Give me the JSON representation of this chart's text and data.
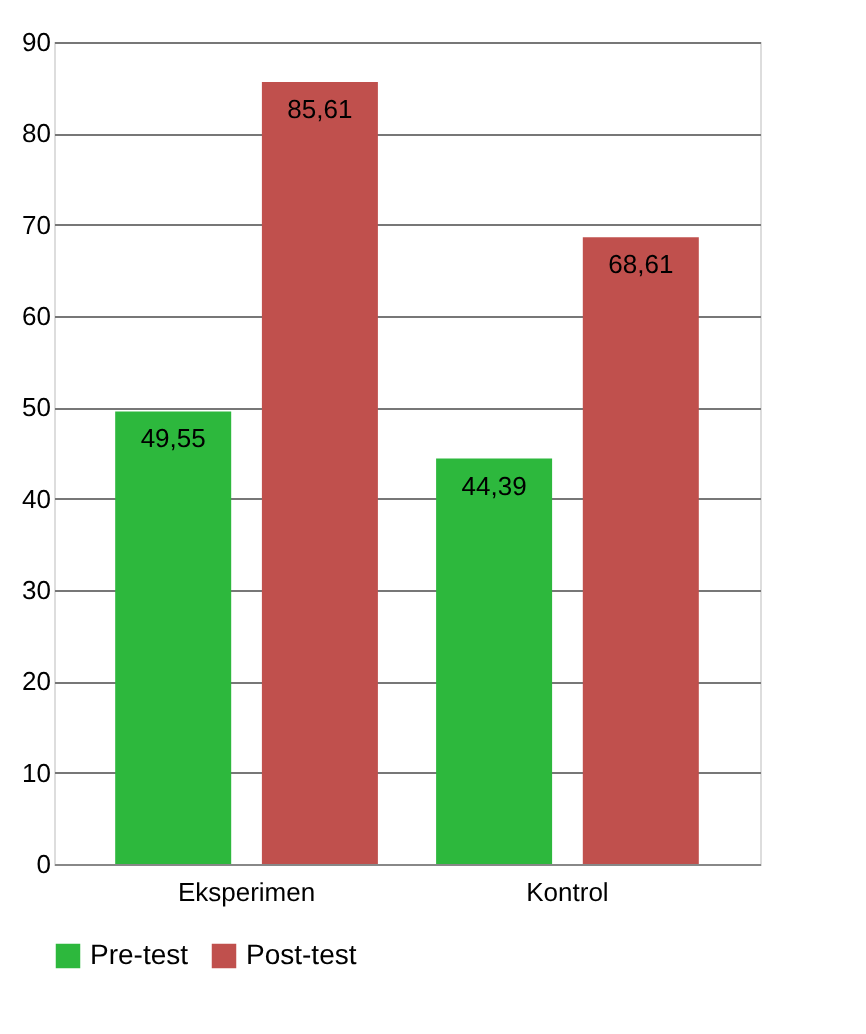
{
  "chart_data": {
    "type": "bar",
    "categories": [
      "Eksperimen",
      "Kontrol"
    ],
    "series": [
      {
        "name": "Pre-test",
        "color": "#2db83d",
        "values": [
          49.55,
          44.39
        ],
        "value_labels": [
          "49,55",
          "44,39"
        ]
      },
      {
        "name": "Post-test",
        "color": "#c0504d",
        "values": [
          85.61,
          68.61
        ],
        "value_labels": [
          "85,61",
          "68,61"
        ]
      }
    ],
    "ylim": [
      0,
      90
    ],
    "yticks": [
      0,
      10,
      20,
      30,
      40,
      50,
      60,
      70,
      80,
      90
    ],
    "grid": "y",
    "legend": "bottom"
  }
}
